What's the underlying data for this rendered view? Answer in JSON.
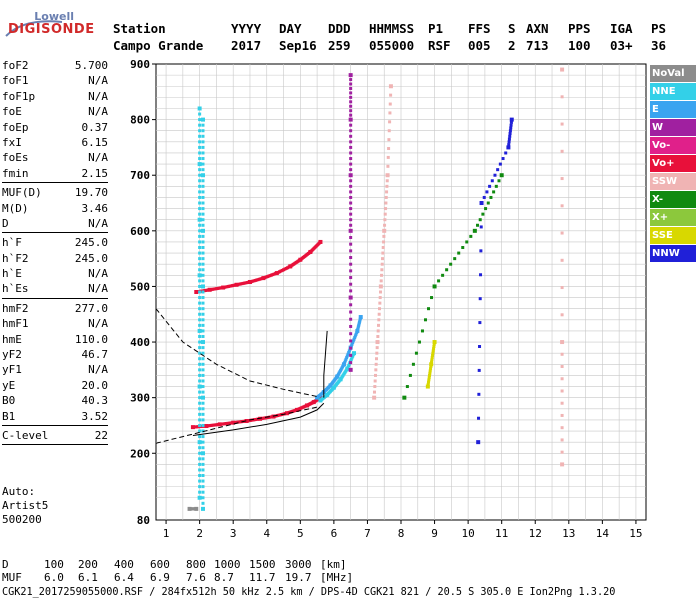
{
  "logo": {
    "line1": "Lowell",
    "line2": "DIGISONDE"
  },
  "header": {
    "labels": [
      "Station",
      "YYYY",
      "DAY",
      "DDD",
      "HHMMSS",
      "P1",
      "FFS",
      "S",
      "AXN",
      "PPS",
      "IGA",
      "PS"
    ],
    "values": [
      "Campo Grande",
      "2017",
      "Sep16",
      "259",
      "055000",
      "RSF",
      "005",
      "2",
      "713",
      "100",
      "03+",
      "36"
    ]
  },
  "params": [
    {
      "name": "foF2",
      "value": "5.700"
    },
    {
      "name": "foF1",
      "value": "N/A"
    },
    {
      "name": "foF1p",
      "value": "N/A"
    },
    {
      "name": "foE",
      "value": "N/A"
    },
    {
      "name": "foEp",
      "value": "0.37"
    },
    {
      "name": "fxI",
      "value": "6.15"
    },
    {
      "name": "foEs",
      "value": "N/A"
    },
    {
      "name": "fmin",
      "value": "2.15"
    },
    {
      "sep": true
    },
    {
      "name": "MUF(D)",
      "value": "19.70"
    },
    {
      "name": "M(D)",
      "value": "3.46"
    },
    {
      "name": "D",
      "value": "N/A"
    },
    {
      "sep": true
    },
    {
      "name": "h`F",
      "value": "245.0"
    },
    {
      "name": "h`F2",
      "value": "245.0"
    },
    {
      "name": "h`E",
      "value": "N/A"
    },
    {
      "name": "h`Es",
      "value": "N/A"
    },
    {
      "sep": true
    },
    {
      "name": "hmF2",
      "value": "277.0"
    },
    {
      "name": "hmF1",
      "value": "N/A"
    },
    {
      "name": "hmE",
      "value": "110.0"
    },
    {
      "name": "yF2",
      "value": "46.7"
    },
    {
      "name": "yF1",
      "value": "N/A"
    },
    {
      "name": "yE",
      "value": "20.0"
    },
    {
      "name": "B0",
      "value": "40.3"
    },
    {
      "name": "B1",
      "value": "3.52"
    },
    {
      "sep": true
    },
    {
      "name": "C-level",
      "value": "22"
    },
    {
      "sep": true
    }
  ],
  "auto": {
    "line1": "Auto:",
    "line2": "Artist5",
    "line3": "500200"
  },
  "legend": [
    {
      "label": "NoVal",
      "color": "#8c8c8c"
    },
    {
      "label": "NNE",
      "color": "#33d0e8"
    },
    {
      "label": "E",
      "color": "#3aa4f0"
    },
    {
      "label": "W",
      "color": "#a020a0"
    },
    {
      "label": "Vo-",
      "color": "#e0208a"
    },
    {
      "label": "Vo+",
      "color": "#e8103a"
    },
    {
      "label": "SSW",
      "color": "#f0b4b4"
    },
    {
      "label": "X-",
      "color": "#108a10"
    },
    {
      "label": "X+",
      "color": "#8cc83c"
    },
    {
      "label": "SSE",
      "color": "#d8d800"
    },
    {
      "label": "NNW",
      "color": "#2020d8"
    }
  ],
  "footer": {
    "d_label": "D",
    "d_values": [
      "100",
      "200",
      "400",
      "600",
      "800",
      "1000",
      "1500",
      "3000",
      "[km]"
    ],
    "muf_label": "MUF",
    "muf_values": [
      "6.0",
      "6.1",
      "6.4",
      "6.9",
      "7.6",
      "8.7",
      "11.7",
      "19.7",
      "[MHz]"
    ],
    "info": "CGK21_2017259055000.RSF / 284fx512h 50 kHz 2.5 km / DPS-4D CGK21 821 / 20.5 S 305.0 E Ion2Png 1.3.20"
  },
  "chart_data": {
    "type": "scatter",
    "xlim": [
      0.7,
      15.3
    ],
    "ylim": [
      80,
      900
    ],
    "x_ticks": [
      1,
      2,
      3,
      4,
      5,
      6,
      7,
      8,
      9,
      10,
      11,
      12,
      13,
      14,
      15
    ],
    "y_ticks": [
      200,
      300,
      400,
      500,
      600,
      700,
      800,
      900
    ],
    "y_tick_label_extra": [
      80
    ],
    "grid": true,
    "legend_placement": "right",
    "series": [
      {
        "color": "#e8103a",
        "x": [
          1.8,
          2.2,
          2.6,
          3.0,
          3.4,
          3.8,
          4.2,
          4.6,
          4.9,
          5.2,
          5.4,
          5.6
        ],
        "y": [
          247,
          249,
          252,
          255,
          258,
          262,
          266,
          272,
          278,
          286,
          292,
          300
        ]
      },
      {
        "color": "#e8103a",
        "x": [
          1.9,
          2.3,
          2.7,
          3.1,
          3.5,
          3.9,
          4.3,
          4.7,
          5.0,
          5.3,
          5.6
        ],
        "y": [
          490,
          494,
          498,
          503,
          508,
          515,
          524,
          536,
          548,
          562,
          580
        ]
      },
      {
        "color": "#3aa4f0",
        "x": [
          5.5,
          5.7,
          5.9,
          6.1,
          6.3,
          6.5,
          6.7,
          6.8
        ],
        "y": [
          300,
          310,
          322,
          338,
          360,
          390,
          420,
          445
        ]
      },
      {
        "color": "#33d0e8",
        "x": [
          5.6,
          5.8,
          6.0,
          6.2,
          6.4,
          6.6
        ],
        "y": [
          295,
          305,
          318,
          333,
          352,
          380
        ]
      },
      {
        "color": "#33d0e8",
        "x": [
          2.0,
          2.0,
          2.0,
          2.0,
          2.0,
          2.0,
          2.0,
          2.0
        ],
        "y": [
          120,
          220,
          320,
          420,
          520,
          620,
          720,
          820
        ]
      },
      {
        "color": "#33d0e8",
        "x": [
          2.1,
          2.1,
          2.1,
          2.1,
          2.1,
          2.1,
          2.1,
          2.1
        ],
        "y": [
          100,
          200,
          300,
          400,
          500,
          600,
          700,
          800
        ]
      },
      {
        "color": "#a020a0",
        "x": [
          6.5,
          6.5,
          6.5,
          6.5,
          6.5,
          6.5
        ],
        "y": [
          350,
          480,
          600,
          700,
          800,
          880
        ]
      },
      {
        "color": "#f0b4b4",
        "x": [
          7.2,
          7.3,
          7.4,
          7.5,
          7.6,
          7.7
        ],
        "y": [
          300,
          400,
          500,
          600,
          700,
          860
        ]
      },
      {
        "color": "#108a10",
        "x": [
          8.1,
          9.0,
          10.2,
          11.0
        ],
        "y": [
          300,
          500,
          600,
          700
        ]
      },
      {
        "color": "#d8d800",
        "x": [
          8.8,
          8.9,
          9.0
        ],
        "y": [
          320,
          360,
          400
        ]
      },
      {
        "color": "#2020d8",
        "x": [
          10.3,
          10.4,
          11.2,
          11.3
        ],
        "y": [
          220,
          650,
          750,
          800
        ]
      },
      {
        "color": "#8c8c8c",
        "x": [
          1.7,
          1.9
        ],
        "y": [
          100,
          100
        ]
      },
      {
        "color": "#f0b4b4",
        "x": [
          12.8,
          12.8,
          12.8
        ],
        "y": [
          180,
          400,
          890
        ]
      }
    ],
    "profile_lines": [
      {
        "style": "solid",
        "x": [
          1.8,
          3.0,
          4.0,
          5.0,
          5.5,
          5.7
        ],
        "y": [
          232,
          242,
          252,
          265,
          278,
          290
        ]
      },
      {
        "style": "solid",
        "x": [
          5.7,
          5.7,
          5.75,
          5.8
        ],
        "y": [
          300,
          340,
          380,
          420
        ]
      },
      {
        "style": "dashed",
        "x": [
          0.7,
          1.5,
          2.5,
          3.5,
          4.5,
          5.5
        ],
        "y": [
          218,
          230,
          245,
          260,
          270,
          283
        ]
      },
      {
        "style": "dashed",
        "x": [
          0.7,
          1.5,
          2.5,
          3.5,
          4.5,
          5.5
        ],
        "y": [
          460,
          400,
          360,
          330,
          315,
          302
        ]
      }
    ],
    "distance_labels": [
      "D",
      "MUF"
    ]
  }
}
